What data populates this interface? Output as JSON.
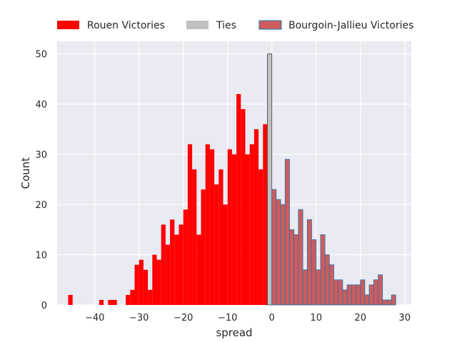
{
  "chart_data": {
    "type": "bar",
    "title": "",
    "xlabel": "spread",
    "ylabel": "Count",
    "xlim": [
      -48.5,
      31.5
    ],
    "ylim": [
      0,
      52.5
    ],
    "xticks": [
      -40,
      -30,
      -20,
      -10,
      0,
      10,
      20,
      30
    ],
    "yticks": [
      0,
      10,
      20,
      30,
      40,
      50
    ],
    "xtick_labels": [
      "−40",
      "−30",
      "−20",
      "−10",
      "0",
      "10",
      "20",
      "30"
    ],
    "ytick_labels": [
      "0",
      "10",
      "20",
      "30",
      "40",
      "50"
    ],
    "grid": true,
    "legend_position": "top",
    "background_color": "#eaeaf2",
    "series": [
      {
        "name": "Rouen Victories",
        "color": "#ff0000",
        "bins": [
          [
            -46,
            2
          ],
          [
            -39,
            1
          ],
          [
            -37,
            1
          ],
          [
            -36,
            1
          ],
          [
            -33,
            2
          ],
          [
            -32,
            3
          ],
          [
            -31,
            8
          ],
          [
            -30,
            9
          ],
          [
            -29,
            7
          ],
          [
            -28,
            3
          ],
          [
            -27,
            10
          ],
          [
            -26,
            9
          ],
          [
            -25,
            16
          ],
          [
            -24,
            12
          ],
          [
            -23,
            17
          ],
          [
            -22,
            14
          ],
          [
            -21,
            16
          ],
          [
            -20,
            19
          ],
          [
            -19,
            32
          ],
          [
            -18,
            27
          ],
          [
            -17,
            14
          ],
          [
            -16,
            23
          ],
          [
            -15,
            32
          ],
          [
            -14,
            31
          ],
          [
            -13,
            24
          ],
          [
            -12,
            27
          ],
          [
            -11,
            20
          ],
          [
            -10,
            31
          ],
          [
            -9,
            30
          ],
          [
            -8,
            42
          ],
          [
            -7,
            39
          ],
          [
            -6,
            30
          ],
          [
            -5,
            32
          ],
          [
            -4,
            35
          ],
          [
            -3,
            27
          ],
          [
            -2,
            36
          ]
        ]
      },
      {
        "name": "Ties",
        "color": "#c0c0c0",
        "bins": [
          [
            -1,
            50
          ]
        ]
      },
      {
        "name": "Bourgoin-Jallieu Victories",
        "color": "#cd5c5c",
        "edge_color": "#1f77b4",
        "bins": [
          [
            0,
            23
          ],
          [
            1,
            21
          ],
          [
            2,
            20
          ],
          [
            3,
            29
          ],
          [
            4,
            15
          ],
          [
            5,
            14
          ],
          [
            6,
            19
          ],
          [
            7,
            7
          ],
          [
            8,
            17
          ],
          [
            9,
            13
          ],
          [
            10,
            7
          ],
          [
            11,
            14
          ],
          [
            12,
            10
          ],
          [
            13,
            8
          ],
          [
            14,
            5
          ],
          [
            15,
            5
          ],
          [
            16,
            3
          ],
          [
            17,
            4
          ],
          [
            18,
            4
          ],
          [
            19,
            4
          ],
          [
            20,
            5
          ],
          [
            21,
            2
          ],
          [
            22,
            4
          ],
          [
            23,
            5
          ],
          [
            24,
            6
          ],
          [
            25,
            1
          ],
          [
            26,
            1
          ],
          [
            27,
            2
          ]
        ]
      }
    ]
  }
}
